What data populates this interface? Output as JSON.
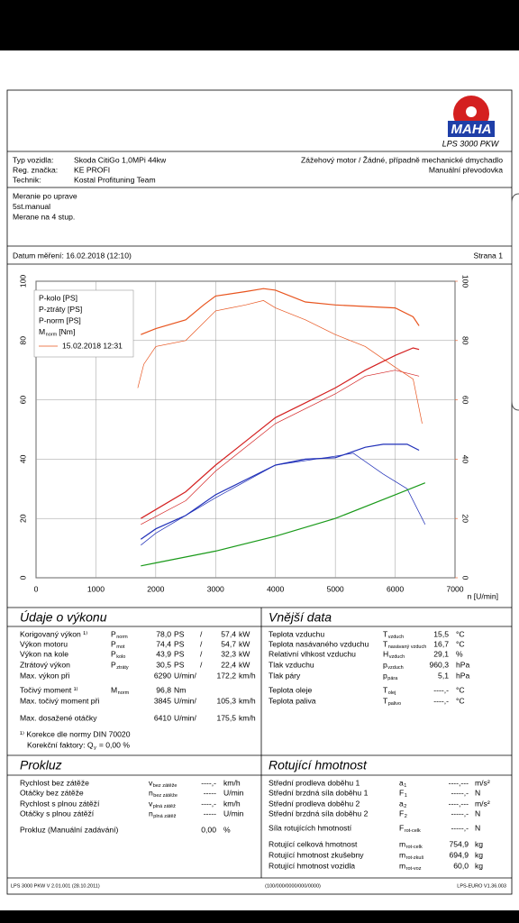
{
  "header": {
    "logo": "MAHA",
    "product": "LPS 3000 PKW"
  },
  "vehicle": {
    "rows": [
      [
        "Typ vozidla:",
        "Skoda CitiGo 1,0MPi 44kw"
      ],
      [
        "Reg. značka:",
        "KE PROFI"
      ],
      [
        "Technik:",
        "Kostal Profituning Team"
      ]
    ],
    "right": [
      "Zážehový motor / Žádné, případně mechanické dmychadlo",
      "Manuální převodovka"
    ]
  },
  "notes": [
    "Meranie po uprave",
    "5st.manual",
    "Merane na 4 stup."
  ],
  "date": "Datum měření: 16.02.2018 (12:10)",
  "page": "Strana 1",
  "chart_data": {
    "type": "line",
    "xlabel": "n [U/min]",
    "xlim": [
      0,
      7000
    ],
    "xticks": [
      0,
      1000,
      2000,
      3000,
      4000,
      5000,
      6000,
      7000
    ],
    "ylim": [
      0,
      100
    ],
    "yticks": [
      0,
      20,
      40,
      60,
      80,
      100
    ],
    "y2lim": [
      0,
      100
    ],
    "y2ticks": [
      0,
      20,
      40,
      60,
      80,
      100
    ],
    "y2color": "#e8541e",
    "grid": true,
    "series": [
      {
        "name": "P-kolo [PS]",
        "color": "#1f2fb8",
        "x": [
          1750,
          2000,
          2500,
          3000,
          3500,
          4000,
          4500,
          5000,
          5500,
          5800,
          6200,
          6400
        ],
        "values": [
          13,
          16.5,
          21,
          28,
          33,
          38,
          40,
          40.5,
          44,
          45,
          45,
          43
        ]
      },
      {
        "name": "P-ztráty [PS]",
        "color": "#1a9a1a",
        "x": [
          1750,
          2000,
          3000,
          4000,
          5000,
          6000,
          6500
        ],
        "values": [
          4,
          5,
          9,
          14,
          20,
          28,
          32
        ]
      },
      {
        "name": "P-norm [PS]",
        "color": "#d42020",
        "x": [
          1750,
          2000,
          2500,
          3000,
          3500,
          4000,
          4500,
          5000,
          5500,
          6000,
          6300,
          6400
        ],
        "values": [
          20,
          23,
          29,
          38,
          46,
          54,
          59,
          64,
          70,
          75,
          77.5,
          77
        ]
      },
      {
        "name": "M",
        "name_sub": "norm",
        "name_suffix": "[Nm]",
        "axis": "y2",
        "color": "#e8541e",
        "x": [
          1750,
          2000,
          2500,
          2800,
          3000,
          3500,
          3800,
          4000,
          4500,
          5000,
          5500,
          6000,
          6300,
          6400
        ],
        "values": [
          82,
          84,
          87,
          92,
          95,
          96.5,
          97.5,
          97,
          93,
          92,
          91.5,
          91,
          88,
          85
        ]
      }
    ],
    "comparison": {
      "label": "15.02.2018 12:31",
      "color": "#e8541e",
      "series": [
        {
          "color": "#1f2fb8",
          "x": [
            1750,
            2000,
            3000,
            4000,
            5000,
            5300,
            5800,
            6200,
            6500
          ],
          "values": [
            11,
            15,
            27,
            38,
            41,
            42,
            35,
            30,
            18
          ]
        },
        {
          "color": "#d42020",
          "x": [
            1750,
            2500,
            3000,
            4000,
            5000,
            5500,
            6000,
            6400
          ],
          "values": [
            18,
            26,
            36,
            52,
            62,
            68,
            70,
            68
          ]
        },
        {
          "color": "#e8541e",
          "axis": "y2",
          "x": [
            1700,
            1800,
            2000,
            2500,
            3000,
            3500,
            3800,
            4000,
            4500,
            5000,
            5500,
            6000,
            6300,
            6450
          ],
          "values": [
            64,
            72,
            78,
            80,
            90,
            92,
            93.5,
            91,
            87,
            82,
            78,
            71,
            67,
            52
          ]
        }
      ]
    }
  },
  "performance": {
    "title": "Údaje o výkonu",
    "rows": [
      {
        "label": "Korigovaný výkon ¹⁾",
        "sym": "P",
        "sub": "norm",
        "v1": "78,0",
        "u1": "PS",
        "sep": "/",
        "v2": "57,4",
        "u2": "kW",
        "color": "#e02020"
      },
      {
        "label": "Výkon motoru",
        "sym": "P",
        "sub": "mot",
        "v1": "74,4",
        "u1": "PS",
        "sep": "/",
        "v2": "54,7",
        "u2": "kW",
        "color": "#e02020"
      },
      {
        "label": "Výkon na kole",
        "sym": "P",
        "sub": "kolo",
        "v1": "43,9",
        "u1": "PS",
        "sep": "/",
        "v2": "32,3",
        "u2": "kW",
        "color": "#1f2fb8"
      },
      {
        "label": "Ztrátový výkon",
        "sym": "P",
        "sub": "ztráty",
        "v1": "30,5",
        "u1": "PS",
        "sep": "/",
        "v2": "22,4",
        "u2": "kW",
        "color": "#1a9a1a"
      },
      {
        "label": "Max. výkon při",
        "v1": "6290",
        "u1": "U/min/",
        "v2": "172,2",
        "u2": "km/h",
        "value_color": "#808080"
      },
      {
        "label": "Točivý moment ¹⁾",
        "sym": "M",
        "sub": "norm",
        "v1": "96,8",
        "u1": "Nm",
        "color": "#e8541e"
      },
      {
        "label": "Max. točivý moment při",
        "v1": "3845",
        "u1": "U/min/",
        "v2": "105,3",
        "u2": "km/h",
        "value_color": "#808080"
      },
      {
        "label": "Max. dosažené otáčky",
        "v1": "6410",
        "u1": "U/min/",
        "v2": "175,5",
        "u2": "km/h",
        "value_color": "#808080"
      }
    ],
    "note": "¹⁾ Korekce dle normy DIN 70020",
    "factor": {
      "label": "Korekční faktory: Q",
      "sub": "y",
      "value": "=   0,00 %"
    }
  },
  "external": {
    "title": "Vnější data",
    "rows": [
      {
        "label": "Teplota vzduchu",
        "sym": "T",
        "sub": "vzduch",
        "v1": "15,5",
        "u1": "°C"
      },
      {
        "label": "Teplota nasávaného vzduchu",
        "sym": "T",
        "sub": "nasávaný vzduch",
        "v1": "16,7",
        "u1": "°C"
      },
      {
        "label": "Relativní vlhkost vzduchu",
        "sym": "H",
        "sub": "vzduch",
        "v1": "29,1",
        "u1": "%"
      },
      {
        "label": "Tlak vzduchu",
        "sym": "p",
        "sub": "vzduch",
        "v1": "960,3",
        "u1": "hPa"
      },
      {
        "label": "Tlak páry",
        "sym": "p",
        "sub": "pára",
        "v1": "5,1",
        "u1": "hPa"
      },
      {
        "label": "Teplota oleje",
        "sym": "T",
        "sub": "olej",
        "v1": "----,-",
        "u1": "°C"
      },
      {
        "label": "Teplota paliva",
        "sym": "T",
        "sub": "palivo",
        "v1": "----,-",
        "u1": "°C"
      }
    ]
  },
  "slip": {
    "title": "Prokluz",
    "rows": [
      {
        "label": "Rychlost bez zátěže",
        "sym": "v",
        "sub": "bez zátěže",
        "v1": "----,-",
        "u1": "km/h"
      },
      {
        "label": "Otáčky bez zátěže",
        "sym": "n",
        "sub": "bez zátěže",
        "v1": "-----",
        "u1": "U/min"
      },
      {
        "label": "Rychlost s plnou zátěží",
        "sym": "v",
        "sub": "plná zátěž",
        "v1": "----,-",
        "u1": "km/h"
      },
      {
        "label": "Otáčky s plnou zátěží",
        "sym": "n",
        "sub": "plná zátěž",
        "v1": "-----",
        "u1": "U/min"
      },
      {
        "label": "Prokluz (Manuální zadávání)",
        "v1": "0,00",
        "u1": "%"
      }
    ]
  },
  "rotating": {
    "title": "Rotující hmotnost",
    "rows": [
      {
        "label": "Střední prodleva doběhu 1",
        "sym": "a",
        "sub": "1",
        "v1": "----,---",
        "u1": "m/s²"
      },
      {
        "label": "Střední brzdná síla doběhu 1",
        "sym": "F",
        "sub": "1",
        "v1": "-----,-",
        "u1": "N"
      },
      {
        "label": "Střední prodleva doběhu 2",
        "sym": "a",
        "sub": "2",
        "v1": "----,---",
        "u1": "m/s²"
      },
      {
        "label": "Střední brzdná síla doběhu 2",
        "sym": "F",
        "sub": "2",
        "v1": "-----,-",
        "u1": "N"
      },
      {
        "label": "Síla rotujících hmotností",
        "sym": "F",
        "sub": "rot-celk",
        "v1": "-----,-",
        "u1": "N"
      },
      {
        "label": "Rotující celková hmotnost",
        "sym": "m",
        "sub": "rot-celk",
        "v1": "754,9",
        "u1": "kg"
      },
      {
        "label": "Rotující hmotnost zkušebny",
        "sym": "m",
        "sub": "rot-zkuš",
        "v1": "694,9",
        "u1": "kg"
      },
      {
        "label": "Rotující hmotnost vozidla",
        "sym": "m",
        "sub": "rot-voz",
        "v1": "60,0",
        "u1": "kg"
      }
    ]
  },
  "footer": {
    "left": "LPS 3000 PKW V 2.01.001 (28.10.2011)",
    "center": "(100/000/0000/000/0000)",
    "right": "LPS-EURO V1.36.003"
  }
}
